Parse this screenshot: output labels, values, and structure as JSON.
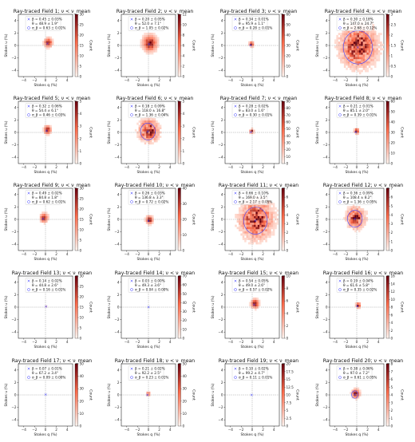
{
  "chart_data": [
    {
      "type": "heatmap",
      "title": "Ray-traced Field 1; ν < ν_mean",
      "xlabel": "Stokes q (%)",
      "ylabel": "Stokes u (%)",
      "colorbar_label": "Count",
      "colorbar_max": 30,
      "colorbar_ticks": [
        0,
        5,
        10,
        15,
        20,
        25,
        30
      ],
      "x_ticks": [
        -4,
        -2,
        0,
        2,
        4
      ],
      "y_ticks": [
        -4,
        -2,
        0,
        2,
        4
      ],
      "xlim": [
        -5,
        5
      ],
      "ylim": [
        -5,
        5
      ],
      "legend": [
        "β = 0.45 ± 0.03%",
        "θ = 48.9 ± 1.9°",
        "σ_β = 0.63 ± 0.01%"
      ],
      "center": [
        0.35,
        0.3
      ],
      "sigma": 0.63,
      "spread": 0.5,
      "circle": false
    },
    {
      "type": "heatmap",
      "title": "Ray-traced Field 2; ν < ν_mean",
      "xlabel": "Stokes q (%)",
      "ylabel": "Stokes u (%)",
      "colorbar_label": "Count",
      "colorbar_max": 12,
      "colorbar_ticks": [
        0,
        2,
        4,
        6,
        8,
        10,
        12
      ],
      "x_ticks": [
        -4,
        -2,
        0,
        2,
        4
      ],
      "y_ticks": [
        -4,
        -2,
        0,
        2,
        4
      ],
      "xlim": [
        -5,
        5
      ],
      "ylim": [
        -5,
        5
      ],
      "legend": [
        "β = 0.20 ± 0.05%",
        "θ = 52.0 ± 7.1°",
        "σ_β = 1.05 ± 0.02%"
      ],
      "center": [
        0.1,
        0.2
      ],
      "sigma": 1.05,
      "spread": 0.9,
      "circle": false
    },
    {
      "type": "heatmap",
      "title": "Ray-traced Field 3; ν < ν_mean",
      "xlabel": "Stokes q (%)",
      "ylabel": "Stokes u (%)",
      "colorbar_label": "Count",
      "colorbar_max": 60,
      "colorbar_ticks": [
        0,
        10,
        20,
        30,
        40,
        50,
        60
      ],
      "x_ticks": [
        -4,
        -2,
        0,
        2,
        4
      ],
      "y_ticks": [
        -4,
        -2,
        0,
        2,
        4
      ],
      "xlim": [
        -5,
        5
      ],
      "ylim": [
        -5,
        5
      ],
      "legend": [
        "β = 0.34 ± 0.01%",
        "θ = 95.9 ± 1.1°",
        "σ_β = 0.28 ± 0.01%"
      ],
      "center": [
        -0.3,
        0.05
      ],
      "sigma": 0.28,
      "spread": 0.3,
      "circle": false
    },
    {
      "type": "heatmap",
      "title": "Ray-traced Field 4; ν < ν_mean",
      "xlabel": "Stokes q (%)",
      "ylabel": "Stokes u (%)",
      "colorbar_label": "Count",
      "colorbar_max": 3.0,
      "colorbar_ticks": [
        0,
        0.5,
        1.0,
        1.5,
        2.0,
        2.5,
        3.0
      ],
      "x_ticks": [
        -4,
        -2,
        0,
        2,
        4
      ],
      "y_ticks": [
        -4,
        -2,
        0,
        2,
        4
      ],
      "xlim": [
        -5,
        5
      ],
      "ylim": [
        -5,
        5
      ],
      "legend": [
        "β = 0.30 ± 0.18%",
        "θ = 147.0 ± 24.7°",
        "σ_β = 2.68 ± 0.12%"
      ],
      "center": [
        0.2,
        -0.3
      ],
      "sigma": 2.68,
      "spread": 2.2,
      "circle": true
    },
    {
      "type": "heatmap",
      "title": "Ray-traced Field 5; ν < ν_mean",
      "xlabel": "Stokes q (%)",
      "ylabel": "Stokes u (%)",
      "colorbar_label": "Count",
      "colorbar_max": 5,
      "colorbar_ticks": [
        0,
        1,
        2,
        3,
        4,
        5
      ],
      "x_ticks": [
        -4,
        -2,
        0,
        2,
        4
      ],
      "y_ticks": [
        -4,
        -2,
        0,
        2,
        4
      ],
      "xlim": [
        -5,
        5
      ],
      "ylim": [
        -5,
        5
      ],
      "legend": [
        "β = 0.32 ± 0.06%",
        "θ = 54.4 ± 6.1°",
        "σ_β = 0.46 ± 0.03%"
      ],
      "center": [
        0.2,
        0.25
      ],
      "sigma": 0.46,
      "spread": 0.45,
      "circle": false
    },
    {
      "type": "heatmap",
      "title": "Ray-traced Field 6; ν < ν_mean",
      "xlabel": "Stokes q (%)",
      "ylabel": "Stokes u (%)",
      "colorbar_label": "Count",
      "colorbar_max": 5,
      "colorbar_ticks": [
        0,
        1,
        2,
        3,
        4,
        5
      ],
      "x_ticks": [
        -4,
        -2,
        0,
        2,
        4
      ],
      "y_ticks": [
        -4,
        -2,
        0,
        2,
        4
      ],
      "xlim": [
        -5,
        5
      ],
      "ylim": [
        -5,
        5
      ],
      "legend": [
        "β = 0.18 ± 0.09%",
        "θ = 118.0 ± 16.8°",
        "σ_β = 1.36 ± 0.04%"
      ],
      "center": [
        -0.1,
        0.15
      ],
      "sigma": 1.36,
      "spread": 1.2,
      "circle": true
    },
    {
      "type": "heatmap",
      "title": "Ray-traced Field 7; ν < ν_mean",
      "xlabel": "Stokes q (%)",
      "ylabel": "Stokes u (%)",
      "colorbar_label": "Count",
      "colorbar_max": 90,
      "colorbar_ticks": [
        0,
        10,
        20,
        30,
        40,
        50,
        60,
        70,
        80,
        90
      ],
      "x_ticks": [
        -4,
        -2,
        0,
        2,
        4
      ],
      "y_ticks": [
        -4,
        -2,
        0,
        2,
        4
      ],
      "xlim": [
        -5,
        5
      ],
      "ylim": [
        -5,
        5
      ],
      "legend": [
        "β = 0.28 ± 0.02%",
        "θ = 83.0 ± 1.6°",
        "σ_β = 0.30 ± 0.01%"
      ],
      "center": [
        -0.25,
        0.05
      ],
      "sigma": 0.3,
      "spread": 0.25,
      "circle": false
    },
    {
      "type": "heatmap",
      "title": "Ray-traced Field 8; ν < ν_mean",
      "xlabel": "Stokes q (%)",
      "ylabel": "Stokes u (%)",
      "colorbar_label": "Count",
      "colorbar_max": 60,
      "colorbar_ticks": [
        0,
        10,
        20,
        30,
        40,
        50,
        60
      ],
      "x_ticks": [
        -4,
        -2,
        0,
        2,
        4
      ],
      "y_ticks": [
        -4,
        -2,
        0,
        2,
        4
      ],
      "xlim": [
        -5,
        5
      ],
      "ylim": [
        -5,
        5
      ],
      "legend": [
        "β = 0.21 ± 0.01%",
        "θ = 85.1 ± 2.0°",
        "σ_β = 0.39 ± 0.01%"
      ],
      "center": [
        -0.2,
        0.05
      ],
      "sigma": 0.39,
      "spread": 0.3,
      "circle": false
    },
    {
      "type": "heatmap",
      "title": "Ray-traced Field 9; ν < ν_mean",
      "xlabel": "Stokes q (%)",
      "ylabel": "Stokes u (%)",
      "colorbar_label": "Count",
      "colorbar_max": 30,
      "colorbar_ticks": [
        0,
        5,
        10,
        15,
        20,
        25,
        30
      ],
      "x_ticks": [
        -4,
        -2,
        0,
        2,
        4
      ],
      "y_ticks": [
        -4,
        -2,
        0,
        2,
        4
      ],
      "xlim": [
        -5,
        5
      ],
      "ylim": [
        -5,
        5
      ],
      "legend": [
        "β = 0.49 ± 0.02%",
        "θ = 84.8 ± 1.8°",
        "σ_β = 0.62 ± 0.01%"
      ],
      "center": [
        -0.45,
        0.1
      ],
      "sigma": 0.62,
      "spread": 0.5,
      "circle": false
    },
    {
      "type": "heatmap",
      "title": "Ray-traced Field 10; ν < ν_mean",
      "xlabel": "Stokes q (%)",
      "ylabel": "Stokes u (%)",
      "colorbar_label": "Count",
      "colorbar_max": 40,
      "colorbar_ticks": [
        0,
        10,
        20,
        30,
        40
      ],
      "x_ticks": [
        -4,
        -2,
        0,
        2,
        4
      ],
      "y_ticks": [
        -4,
        -2,
        0,
        2,
        4
      ],
      "xlim": [
        -5,
        5
      ],
      "ylim": [
        -5,
        5
      ],
      "legend": [
        "β = 0.26 ± 0.03%",
        "θ = 136.8 ± 3.3°",
        "σ_β = 0.72 ± 0.02%"
      ],
      "center": [
        0.0,
        -0.25
      ],
      "sigma": 0.72,
      "spread": 0.45,
      "circle": false
    },
    {
      "type": "heatmap",
      "title": "Ray-traced Field 11; ν < ν_mean",
      "xlabel": "Stokes q (%)",
      "ylabel": "Stokes u (%)",
      "colorbar_label": "Count",
      "colorbar_max": 7,
      "colorbar_ticks": [
        0,
        1,
        2,
        3,
        4,
        5,
        6,
        7
      ],
      "x_ticks": [
        -4,
        -2,
        0,
        2,
        4
      ],
      "y_ticks": [
        -4,
        -2,
        0,
        2,
        4
      ],
      "xlim": [
        -5,
        5
      ],
      "ylim": [
        -5,
        5
      ],
      "legend": [
        "β = 0.66 ± 0.10%",
        "θ = 169.0 ± 3.5°",
        "σ_β = 2.17 ± 0.05%"
      ],
      "center": [
        0.6,
        -0.2
      ],
      "sigma": 2.17,
      "spread": 2.0,
      "circle": true
    },
    {
      "type": "heatmap",
      "title": "Ray-traced Field 12; ν < ν_mean",
      "xlabel": "Stokes q (%)",
      "ylabel": "Stokes u (%)",
      "colorbar_label": "Count",
      "colorbar_max": 7,
      "colorbar_ticks": [
        0,
        1,
        2,
        3,
        4,
        5,
        6,
        7
      ],
      "x_ticks": [
        -4,
        -2,
        0,
        2,
        4
      ],
      "y_ticks": [
        -4,
        -2,
        0,
        2,
        4
      ],
      "xlim": [
        -5,
        5
      ],
      "ylim": [
        -5,
        5
      ],
      "legend": [
        "β = 0.36 ± 0.09%",
        "θ = 108.4 ± 8.2°",
        "σ_β = 1.36 ± 0.05%"
      ],
      "center": [
        -0.35,
        0.1
      ],
      "sigma": 1.36,
      "spread": 1.1,
      "circle": true
    },
    {
      "type": "heatmap",
      "title": "Ray-traced Field 13; ν < ν_mean",
      "xlabel": "Stokes q (%)",
      "ylabel": "Stokes u (%)",
      "colorbar_label": "Count",
      "colorbar_max": 30,
      "colorbar_ticks": [
        0,
        5,
        10,
        15,
        20,
        25,
        30
      ],
      "x_ticks": [
        -4,
        -2,
        0,
        2,
        4
      ],
      "y_ticks": [
        -4,
        -2,
        0,
        2,
        4
      ],
      "xlim": [
        -5,
        5
      ],
      "ylim": [
        -5,
        5
      ],
      "legend": [
        "β = 0.14 ± 0.02%",
        "θ = 44.8 ± 2.6°",
        "σ_β = 0.16 ± 0.01%"
      ],
      "center": [
        0.1,
        0.1
      ],
      "sigma": 0.16,
      "spread": 0.12,
      "circle": false
    },
    {
      "type": "heatmap",
      "title": "Ray-traced Field 14; ν < ν_mean",
      "xlabel": "Stokes q (%)",
      "ylabel": "Stokes u (%)",
      "colorbar_label": "Count",
      "colorbar_max": 70,
      "colorbar_ticks": [
        0,
        10,
        20,
        30,
        40,
        50,
        60,
        70
      ],
      "x_ticks": [
        -4,
        -2,
        0,
        2,
        4
      ],
      "y_ticks": [
        -4,
        -2,
        0,
        2,
        4
      ],
      "xlim": [
        -5,
        5
      ],
      "ylim": [
        -5,
        5
      ],
      "legend": [
        "β = 0.03 ± 0.00%",
        "θ = 49.3 ± 3.6°",
        "σ_β = 0.04 ± 0.00%"
      ],
      "center": [
        0.02,
        0.02
      ],
      "sigma": 0.04,
      "spread": 0.05,
      "circle": false
    },
    {
      "type": "heatmap",
      "title": "Ray-traced Field 15; ν < ν_mean",
      "xlabel": "Stokes q (%)",
      "ylabel": "Stokes u (%)",
      "colorbar_label": "Count",
      "colorbar_max": 10,
      "colorbar_ticks": [
        0,
        2,
        4,
        6,
        8,
        10
      ],
      "x_ticks": [
        -4,
        -2,
        0,
        2,
        4
      ],
      "y_ticks": [
        -4,
        -2,
        0,
        2,
        4
      ],
      "xlim": [
        -5,
        5
      ],
      "ylim": [
        -5,
        5
      ],
      "legend": [
        "β = 0.54 ± 0.05%",
        "θ = 49.0 ± 2.6°",
        "σ_β = 0.57 ± 0.02%"
      ],
      "center": [
        0.35,
        0.4
      ],
      "sigma": 0.57,
      "spread": 0.5,
      "circle": false
    },
    {
      "type": "heatmap",
      "title": "Ray-traced Field 16; ν < ν_mean",
      "xlabel": "Stokes q (%)",
      "ylabel": "Stokes u (%)",
      "colorbar_label": "Count",
      "colorbar_max": 16,
      "colorbar_ticks": [
        0,
        2,
        4,
        6,
        8,
        10,
        12,
        14,
        16
      ],
      "x_ticks": [
        -4,
        -2,
        0,
        2,
        4
      ],
      "y_ticks": [
        -4,
        -2,
        0,
        2,
        4
      ],
      "xlim": [
        -5,
        5
      ],
      "ylim": [
        -5,
        5
      ],
      "legend": [
        "β = 0.19 ± 0.04%",
        "θ = 61.6 ± 5.8°",
        "σ_β = 0.35 ± 0.02%"
      ],
      "center": [
        0.1,
        0.15
      ],
      "sigma": 0.35,
      "spread": 0.3,
      "circle": false
    },
    {
      "type": "heatmap",
      "title": "Ray-traced Field 17; ν < ν_mean",
      "xlabel": "Stokes q (%)",
      "ylabel": "Stokes u (%)",
      "colorbar_label": "Count",
      "colorbar_max": 50,
      "colorbar_ticks": [
        0,
        10,
        20,
        30,
        40,
        50
      ],
      "x_ticks": [
        -4,
        -2,
        0,
        2,
        4
      ],
      "y_ticks": [
        -4,
        -2,
        0,
        2,
        4
      ],
      "xlim": [
        -5,
        5
      ],
      "ylim": [
        -5,
        5
      ],
      "legend": [
        "β = 0.07 ± 0.01%",
        "θ = 67.2 ± 3.4°",
        "σ_β = 0.09 ± 0.00%"
      ],
      "center": [
        0.03,
        0.06
      ],
      "sigma": 0.09,
      "spread": 0.08,
      "circle": false
    },
    {
      "type": "heatmap",
      "title": "Ray-traced Field 18; ν < ν_mean",
      "xlabel": "Stokes q (%)",
      "ylabel": "Stokes u (%)",
      "colorbar_label": "Count",
      "colorbar_max": 50,
      "colorbar_ticks": [
        0,
        10,
        20,
        30,
        40,
        50
      ],
      "x_ticks": [
        -4,
        -2,
        0,
        2,
        4
      ],
      "y_ticks": [
        -4,
        -2,
        0,
        2,
        4
      ],
      "xlim": [
        -5,
        5
      ],
      "ylim": [
        -5,
        5
      ],
      "legend": [
        "β = 0.21 ± 0.02%",
        "θ = 92.2 ± 2.5°",
        "σ_β = 0.23 ± 0.01%"
      ],
      "center": [
        -0.2,
        0.0
      ],
      "sigma": 0.23,
      "spread": 0.2,
      "circle": false
    },
    {
      "type": "heatmap",
      "title": "Ray-traced Field 19; ν < ν_mean",
      "xlabel": "Stokes q (%)",
      "ylabel": "Stokes u (%)",
      "colorbar_label": "Count",
      "colorbar_max": 20.0,
      "colorbar_ticks": [
        0,
        2.5,
        5.0,
        7.5,
        10.0,
        12.5,
        15.0,
        17.5,
        20.0
      ],
      "x_ticks": [
        -4,
        -2,
        0,
        2,
        4
      ],
      "y_ticks": [
        -4,
        -2,
        0,
        2,
        4
      ],
      "xlim": [
        -5,
        5
      ],
      "ylim": [
        -5,
        5
      ],
      "legend": [
        "β = 0.10 ± 0.02%",
        "θ = 99.2 ± 4.7°",
        "σ_β = 0.11 ± 0.01%"
      ],
      "center": [
        -0.1,
        0.0
      ],
      "sigma": 0.11,
      "spread": 0.1,
      "circle": false
    },
    {
      "type": "heatmap",
      "title": "Ray-traced Field 20; ν < ν_mean",
      "xlabel": "Stokes q (%)",
      "ylabel": "Stokes u (%)",
      "colorbar_label": "Count",
      "colorbar_max": 8,
      "colorbar_ticks": [
        0,
        1,
        2,
        3,
        4,
        5,
        6,
        7,
        8
      ],
      "x_ticks": [
        -4,
        -2,
        0,
        2,
        4
      ],
      "y_ticks": [
        -4,
        -2,
        0,
        2,
        4
      ],
      "xlim": [
        -5,
        5
      ],
      "ylim": [
        -5,
        5
      ],
      "legend": [
        "β = 0.38 ± 0.06%",
        "θ = 97.0 ± 7.2°",
        "σ_β = 0.61 ± 0.05%"
      ],
      "center": [
        -0.35,
        0.05
      ],
      "sigma": 0.61,
      "spread": 0.5,
      "circle": true
    }
  ],
  "colors": {
    "cmap_low": "#fff5f0",
    "cmap_mid": "#fb6a4a",
    "cmap_high": "#67000d",
    "marker": "#2020ff",
    "circle": "#4040ff",
    "dashed": "#888888"
  }
}
